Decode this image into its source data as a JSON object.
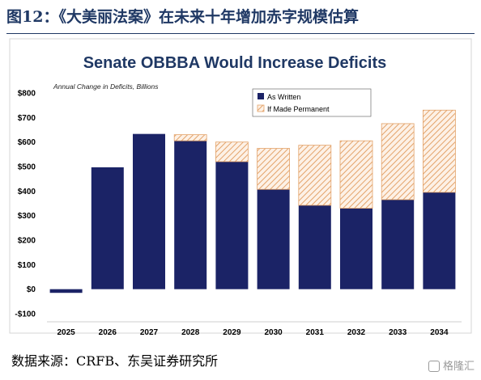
{
  "page": {
    "heading": "图12：《大美丽法案》在未来十年增加赤字规模估算",
    "source": "数据来源：CRFB、东吴证券研究所",
    "watermark": "格隆汇"
  },
  "colors": {
    "as_written": "#1b2366",
    "permanent_stroke": "#e3a36a",
    "permanent_fill": "#fdf1e6",
    "title": "#1f3864"
  },
  "chart_data": {
    "type": "bar",
    "stacked": true,
    "title": "Senate OBBBA Would Increase Deficits",
    "subtitle": "Annual Change in Deficits, Billions",
    "categories": [
      "2025",
      "2026",
      "2027",
      "2028",
      "2029",
      "2030",
      "2031",
      "2032",
      "2033",
      "2034"
    ],
    "series": [
      {
        "name": "As Written",
        "values": [
          -15,
          497,
          633,
          605,
          520,
          407,
          342,
          330,
          365,
          395
        ]
      },
      {
        "name": "If Made Permanent",
        "values": [
          0,
          0,
          0,
          25,
          80,
          167,
          245,
          275,
          310,
          335
        ]
      }
    ],
    "ylim": [
      -100,
      800
    ],
    "yticks": [
      -100,
      0,
      100,
      200,
      300,
      400,
      500,
      600,
      700,
      800
    ],
    "ytick_labels": [
      "-$100",
      "$0",
      "$100",
      "$200",
      "$300",
      "$400",
      "$500",
      "$600",
      "$700",
      "$800"
    ],
    "legend_position": "top-right",
    "grid": false
  }
}
